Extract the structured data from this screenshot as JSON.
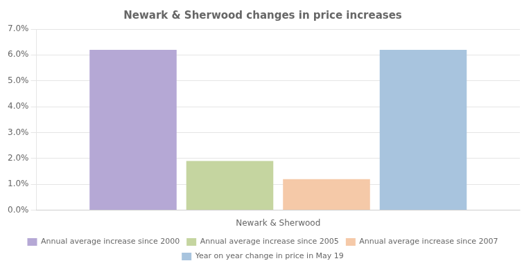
{
  "chart_data": {
    "type": "bar",
    "title": "Newark & Sherwood changes in price increases",
    "xlabel": "Newark & Sherwood",
    "categories": [
      null
    ],
    "series": [
      {
        "name": "Annual average increase since 2000",
        "color": "#b5a8d5",
        "values": [
          0.062
        ]
      },
      {
        "name": "Annual average increase since 2005",
        "color": "#c5d5a0",
        "values": [
          0.019
        ]
      },
      {
        "name": "Annual average increase since 2007",
        "color": "#f5c9a8",
        "values": [
          0.012
        ]
      },
      {
        "name": "Year on year change in price in May 19",
        "color": "#a8c4de",
        "values": [
          0.062
        ]
      }
    ],
    "ylim": [
      0,
      0.07
    ],
    "yticks": [
      {
        "value": 0.0,
        "label": "0.0%"
      },
      {
        "value": 0.01,
        "label": "1.0%"
      },
      {
        "value": 0.02,
        "label": "2.0%"
      },
      {
        "value": 0.03,
        "label": "3.0%"
      },
      {
        "value": 0.04,
        "label": "4.0%"
      },
      {
        "value": 0.05,
        "label": "5.0%"
      },
      {
        "value": 0.06,
        "label": "6.0%"
      },
      {
        "value": 0.07,
        "label": "7.0%"
      }
    ],
    "grid": true,
    "legend": "bottom",
    "tick_labels": "y"
  }
}
